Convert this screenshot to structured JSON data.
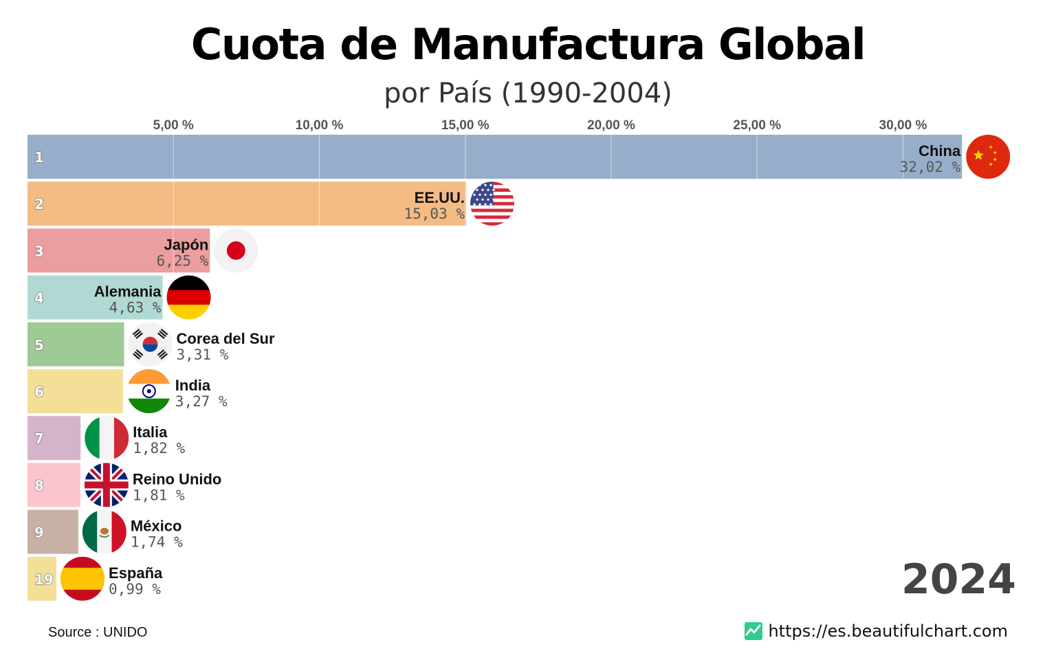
{
  "title": "Cuota de Manufactura Global",
  "subtitle": "por País (1990-2004)",
  "source": "Source : UNIDO",
  "website": "https://es.beautifulchart.com",
  "website_icon": "trend-chart-icon",
  "chart_data": {
    "type": "bar",
    "orientation": "horizontal",
    "title": "Cuota de Manufactura Global",
    "subtitle": "por País (1990-2004)",
    "year": "2024",
    "xlim": [
      0,
      33.2
    ],
    "ticks": [
      5,
      10,
      15,
      20,
      25,
      30
    ],
    "tick_labels": [
      "5,00 %",
      "10,00 %",
      "15,00 %",
      "20,00 %",
      "25,00 %",
      "30,00 %"
    ],
    "grid": true,
    "bars": [
      {
        "rank": "1",
        "country": "China",
        "value": 32.02,
        "value_label": "32,02 %",
        "color": "#97aeca",
        "flag": "china-flag-icon"
      },
      {
        "rank": "2",
        "country": "EE.UU.",
        "value": 15.03,
        "value_label": "15,03 %",
        "color": "#f4bb85",
        "flag": "usa-flag-icon"
      },
      {
        "rank": "3",
        "country": "Japón",
        "value": 6.25,
        "value_label": "6,25 %",
        "color": "#eb9d9f",
        "flag": "japan-flag-icon"
      },
      {
        "rank": "4",
        "country": "Alemania",
        "value": 4.63,
        "value_label": "4,63 %",
        "color": "#b0d9d4",
        "flag": "germany-flag-icon"
      },
      {
        "rank": "5",
        "country": "Corea del Sur",
        "value": 3.31,
        "value_label": "3,31 %",
        "color": "#9fc995",
        "flag": "south-korea-flag-icon"
      },
      {
        "rank": "6",
        "country": "India",
        "value": 3.27,
        "value_label": "3,27 %",
        "color": "#f3df97",
        "flag": "india-flag-icon"
      },
      {
        "rank": "7",
        "country": "Italia",
        "value": 1.82,
        "value_label": "1,82 %",
        "color": "#d4b4c9",
        "flag": "italy-flag-icon"
      },
      {
        "rank": "8",
        "country": "Reino Unido",
        "value": 1.81,
        "value_label": "1,81 %",
        "color": "#fcc5cd",
        "flag": "uk-flag-icon"
      },
      {
        "rank": "9",
        "country": "México",
        "value": 1.74,
        "value_label": "1,74 %",
        "color": "#c7b0a4",
        "flag": "mexico-flag-icon"
      },
      {
        "rank": "19",
        "country": "España",
        "value": 0.99,
        "value_label": "0,99 %",
        "color": "#f3df97",
        "flag": "spain-flag-icon"
      }
    ]
  }
}
